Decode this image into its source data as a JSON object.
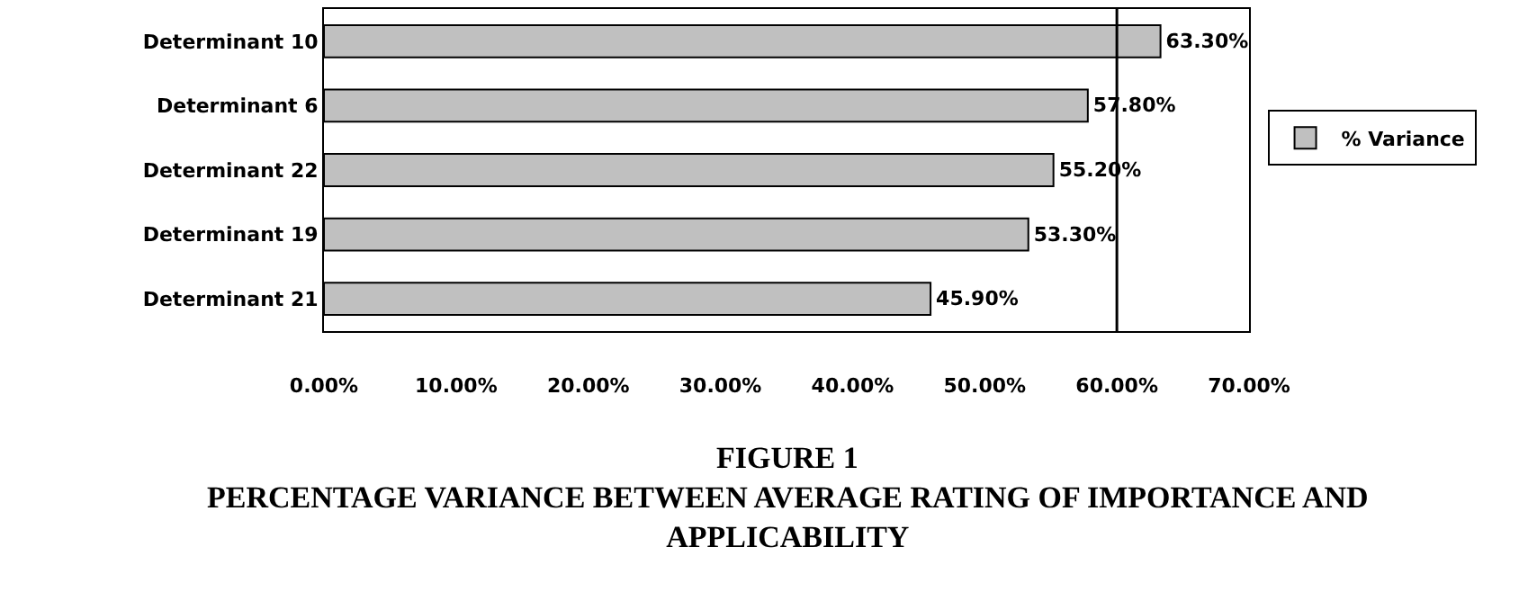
{
  "chart_data": {
    "type": "bar",
    "orientation": "horizontal",
    "title": "FIGURE 1",
    "subtitle": "PERCENTAGE VARIANCE BETWEEN AVERAGE RATING OF IMPORTANCE AND APPLICABILITY",
    "categories": [
      "Determinant 10",
      "Determinant 6",
      "Determinant 22",
      "Determinant 19",
      "Determinant 21"
    ],
    "series": [
      {
        "name": "% Variance",
        "color": "#c0c0c0",
        "values": [
          63.3,
          57.8,
          55.2,
          53.3,
          45.9
        ],
        "value_labels": [
          "63.30%",
          "57.80%",
          "55.20%",
          "53.30%",
          "45.90%"
        ]
      }
    ],
    "xlim": [
      0,
      70
    ],
    "xticks": [
      {
        "value": 0,
        "label": "0.00%"
      },
      {
        "value": 10,
        "label": "10.00%"
      },
      {
        "value": 20,
        "label": "20.00%"
      },
      {
        "value": 30,
        "label": "30.00%"
      },
      {
        "value": 40,
        "label": "40.00%"
      },
      {
        "value": 50,
        "label": "50.00%"
      },
      {
        "value": 60,
        "label": "60.00%"
      },
      {
        "value": 70,
        "label": "70.00%"
      }
    ],
    "ref_lines": [
      {
        "axis": "x",
        "value": 60,
        "label": null,
        "color": "#000000"
      }
    ],
    "grid": false,
    "legend": "right"
  }
}
